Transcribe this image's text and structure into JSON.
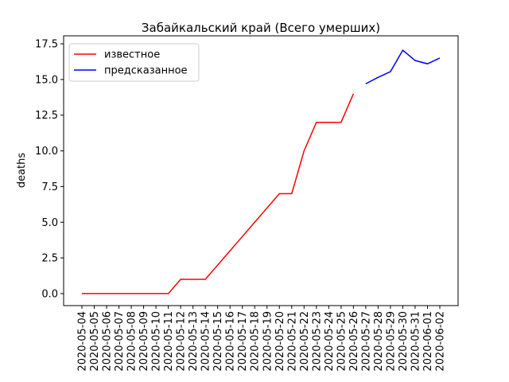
{
  "chart_data": {
    "type": "line",
    "title": "Забайкальский край (Всего умерших)",
    "ylabel": "deaths",
    "categories": [
      "2020-05-04",
      "2020-05-05",
      "2020-05-06",
      "2020-05-07",
      "2020-05-08",
      "2020-05-09",
      "2020-05-10",
      "2020-05-11",
      "2020-05-12",
      "2020-05-13",
      "2020-05-14",
      "2020-05-15",
      "2020-05-16",
      "2020-05-17",
      "2020-05-18",
      "2020-05-19",
      "2020-05-20",
      "2020-05-21",
      "2020-05-22",
      "2020-05-23",
      "2020-05-24",
      "2020-05-25",
      "2020-05-26",
      "2020-05-27",
      "2020-05-28",
      "2020-05-29",
      "2020-05-30",
      "2020-05-31",
      "2020-06-01",
      "2020-06-02"
    ],
    "series": [
      {
        "name": "известное",
        "color": "#ff0000",
        "values": [
          0,
          0,
          0,
          0,
          0,
          0,
          0,
          0,
          1,
          1,
          1,
          2,
          3,
          4,
          5,
          6,
          7,
          7,
          10,
          12,
          12,
          12,
          14,
          null,
          null,
          null,
          null,
          null,
          null,
          null
        ]
      },
      {
        "name": "предсказанное",
        "color": "#0000ff",
        "values": [
          null,
          null,
          null,
          null,
          null,
          null,
          null,
          null,
          null,
          null,
          null,
          null,
          null,
          null,
          null,
          null,
          null,
          null,
          null,
          null,
          null,
          null,
          null,
          14.7,
          15.15,
          15.55,
          17.05,
          16.33,
          16.1,
          16.5
        ]
      }
    ],
    "ylim": [
      -0.84,
      18.06
    ],
    "yticks": [
      {
        "value": 0,
        "label": "0.0"
      },
      2.5,
      {
        "value": 5,
        "label": "5.0"
      },
      7.5,
      {
        "value": 10,
        "label": "10.0"
      },
      12.5,
      {
        "value": 15,
        "label": "15.0"
      },
      17.5
    ],
    "legend": "upper left"
  }
}
